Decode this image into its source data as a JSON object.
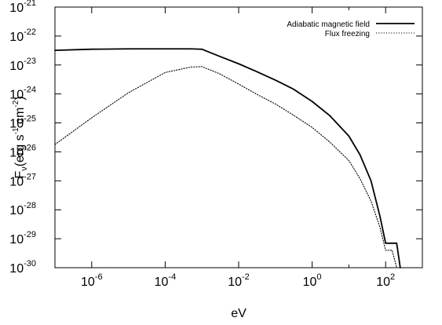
{
  "chart_data": {
    "type": "line",
    "title": "",
    "xlabel": "eV",
    "ylabel": "F",
    "ylabel_subscript": "ν",
    "ylabel_units": "(erg s",
    "ylabel_units_exp1": "-1",
    "ylabel_units_mid": " cm",
    "ylabel_units_exp2": "-2",
    "ylabel_units_end": ")",
    "xscale": "log",
    "yscale": "log",
    "xlim": [
      1e-07,
      1000
    ],
    "ylim": [
      1e-30,
      1e-21
    ],
    "xticks": [
      {
        "value": 1e-06,
        "base": "10",
        "exp": "-6"
      },
      {
        "value": 0.0001,
        "base": "10",
        "exp": "-4"
      },
      {
        "value": 0.01,
        "base": "10",
        "exp": "-2"
      },
      {
        "value": 1,
        "base": "10",
        "exp": "0"
      },
      {
        "value": 100,
        "base": "10",
        "exp": "2"
      }
    ],
    "yticks": [
      {
        "value": 1e-21,
        "base": "10",
        "exp": "-21"
      },
      {
        "value": 1e-22,
        "base": "10",
        "exp": "-22"
      },
      {
        "value": 1e-23,
        "base": "10",
        "exp": "-23"
      },
      {
        "value": 1e-24,
        "base": "10",
        "exp": "-24"
      },
      {
        "value": 1e-25,
        "base": "10",
        "exp": "-25"
      },
      {
        "value": 1e-26,
        "base": "10",
        "exp": "-26"
      },
      {
        "value": 1e-27,
        "base": "10",
        "exp": "-27"
      },
      {
        "value": 1e-28,
        "base": "10",
        "exp": "-28"
      },
      {
        "value": 1e-29,
        "base": "10",
        "exp": "-29"
      },
      {
        "value": 1e-30,
        "base": "10",
        "exp": "-30"
      }
    ],
    "legend_position": "top-right",
    "grid": false,
    "series": [
      {
        "name": "Adiabatic magnetic field",
        "style": "solid",
        "color": "#000000",
        "points": [
          [
            1e-07,
            3.2e-23
          ],
          [
            1e-06,
            3.5e-23
          ],
          [
            1e-05,
            3.6e-23
          ],
          [
            0.0001,
            3.6e-23
          ],
          [
            0.0005,
            3.6e-23
          ],
          [
            0.001,
            3.5e-23
          ],
          [
            0.003,
            2e-23
          ],
          [
            0.01,
            1.1e-23
          ],
          [
            0.03,
            6e-24
          ],
          [
            0.1,
            3e-24
          ],
          [
            0.3,
            1.5e-24
          ],
          [
            1,
            5.5e-25
          ],
          [
            3,
            1.8e-25
          ],
          [
            10,
            3.5e-26
          ],
          [
            20,
            8e-27
          ],
          [
            40,
            1e-27
          ],
          [
            70,
            6e-29
          ],
          [
            100,
            7e-30
          ],
          [
            150,
            7e-30
          ],
          [
            200,
            7e-30
          ],
          [
            250,
            1e-30
          ]
        ]
      },
      {
        "name": "Flux freezing",
        "style": "dotted",
        "color": "#000000",
        "points": [
          [
            1e-07,
            1.8e-26
          ],
          [
            1e-06,
            1.5e-25
          ],
          [
            1e-05,
            1.1e-24
          ],
          [
            0.0001,
            5.5e-24
          ],
          [
            0.0005,
            8.5e-24
          ],
          [
            0.001,
            8.8e-24
          ],
          [
            0.003,
            5e-24
          ],
          [
            0.01,
            2.2e-24
          ],
          [
            0.03,
            1e-24
          ],
          [
            0.1,
            4.5e-25
          ],
          [
            0.3,
            1.9e-25
          ],
          [
            1,
            7e-26
          ],
          [
            3,
            2.2e-26
          ],
          [
            10,
            5e-27
          ],
          [
            20,
            1.2e-27
          ],
          [
            40,
            2e-28
          ],
          [
            70,
            2.5e-29
          ],
          [
            100,
            4e-30
          ],
          [
            150,
            4e-30
          ],
          [
            200,
            1e-30
          ]
        ]
      }
    ]
  }
}
